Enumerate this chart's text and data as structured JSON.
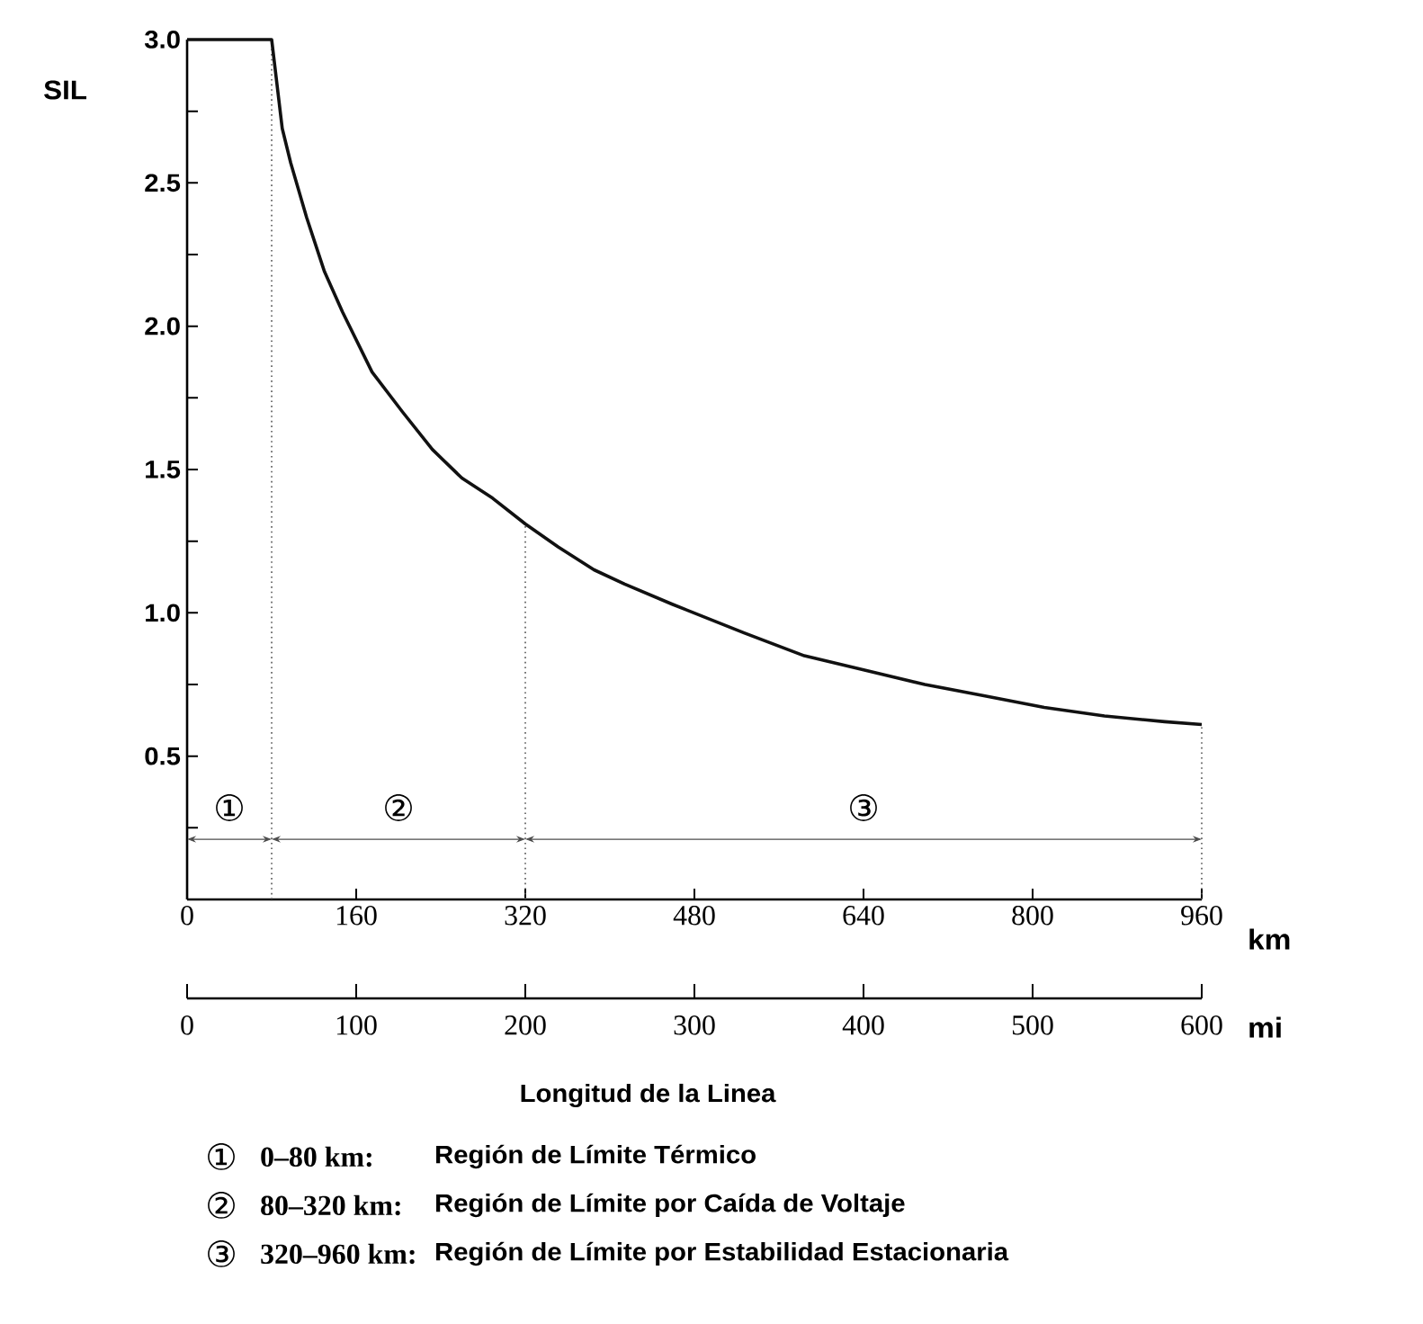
{
  "chart_data": {
    "type": "line",
    "ylabel": "SIL",
    "xlabel": "km",
    "x2label": "mi",
    "xlim": [
      0,
      960
    ],
    "xticks": [
      0,
      160,
      320,
      480,
      640,
      800,
      960
    ],
    "ylim": [
      0,
      3.0
    ],
    "yticks": [
      {
        "value": 0.25,
        "label": null
      },
      {
        "value": 0.5,
        "label": "0.5"
      },
      {
        "value": 0.75,
        "label": null
      },
      {
        "value": 1.0,
        "label": "1.0"
      },
      {
        "value": 1.25,
        "label": null
      },
      {
        "value": 1.5,
        "label": "1.5"
      },
      {
        "value": 1.75,
        "label": null
      },
      {
        "value": 2.0,
        "label": "2.0"
      },
      {
        "value": 2.25,
        "label": null
      },
      {
        "value": 2.5,
        "label": "2.5"
      },
      {
        "value": 2.75,
        "label": null
      },
      {
        "value": 3.0,
        "label": "3.0"
      }
    ],
    "x2lim": [
      0,
      600
    ],
    "x2ticks": [
      0,
      100,
      200,
      300,
      400,
      500,
      600
    ],
    "marker": "none",
    "line_style": "solid",
    "series": [
      {
        "color": "#111111",
        "x": [
          0,
          80,
          90,
          98,
          113,
          130,
          147,
          175,
          204,
          232,
          260,
          289,
          320,
          351,
          385,
          414,
          459,
          527,
          584,
          641,
          698,
          755,
          811,
          868,
          925,
          960
        ],
        "values": [
          3.0,
          3.0,
          2.69,
          2.57,
          2.38,
          2.19,
          2.05,
          1.84,
          1.7,
          1.57,
          1.47,
          1.4,
          1.31,
          1.23,
          1.15,
          1.1,
          1.03,
          0.93,
          0.85,
          0.8,
          0.75,
          0.71,
          0.67,
          0.64,
          0.62,
          0.61
        ]
      }
    ],
    "ref_lines": [
      {
        "axis": "x",
        "value": 80,
        "line_style": "dotted",
        "color": "#555555"
      },
      {
        "axis": "x",
        "value": 320,
        "line_style": "dotted",
        "color": "#555555"
      },
      {
        "axis": "x",
        "value": 960,
        "line_style": "dotted",
        "color": "#555555"
      }
    ],
    "annotations": [
      "Longitud de la Linea",
      "①",
      "②",
      "③",
      "0–80 km:",
      "Región de Límite Térmico",
      "80–320 km:",
      "Región de Límite por Caída de Voltaje",
      "320–960 km:",
      "Región de Límite por Estabilidad Estacionaria"
    ]
  }
}
